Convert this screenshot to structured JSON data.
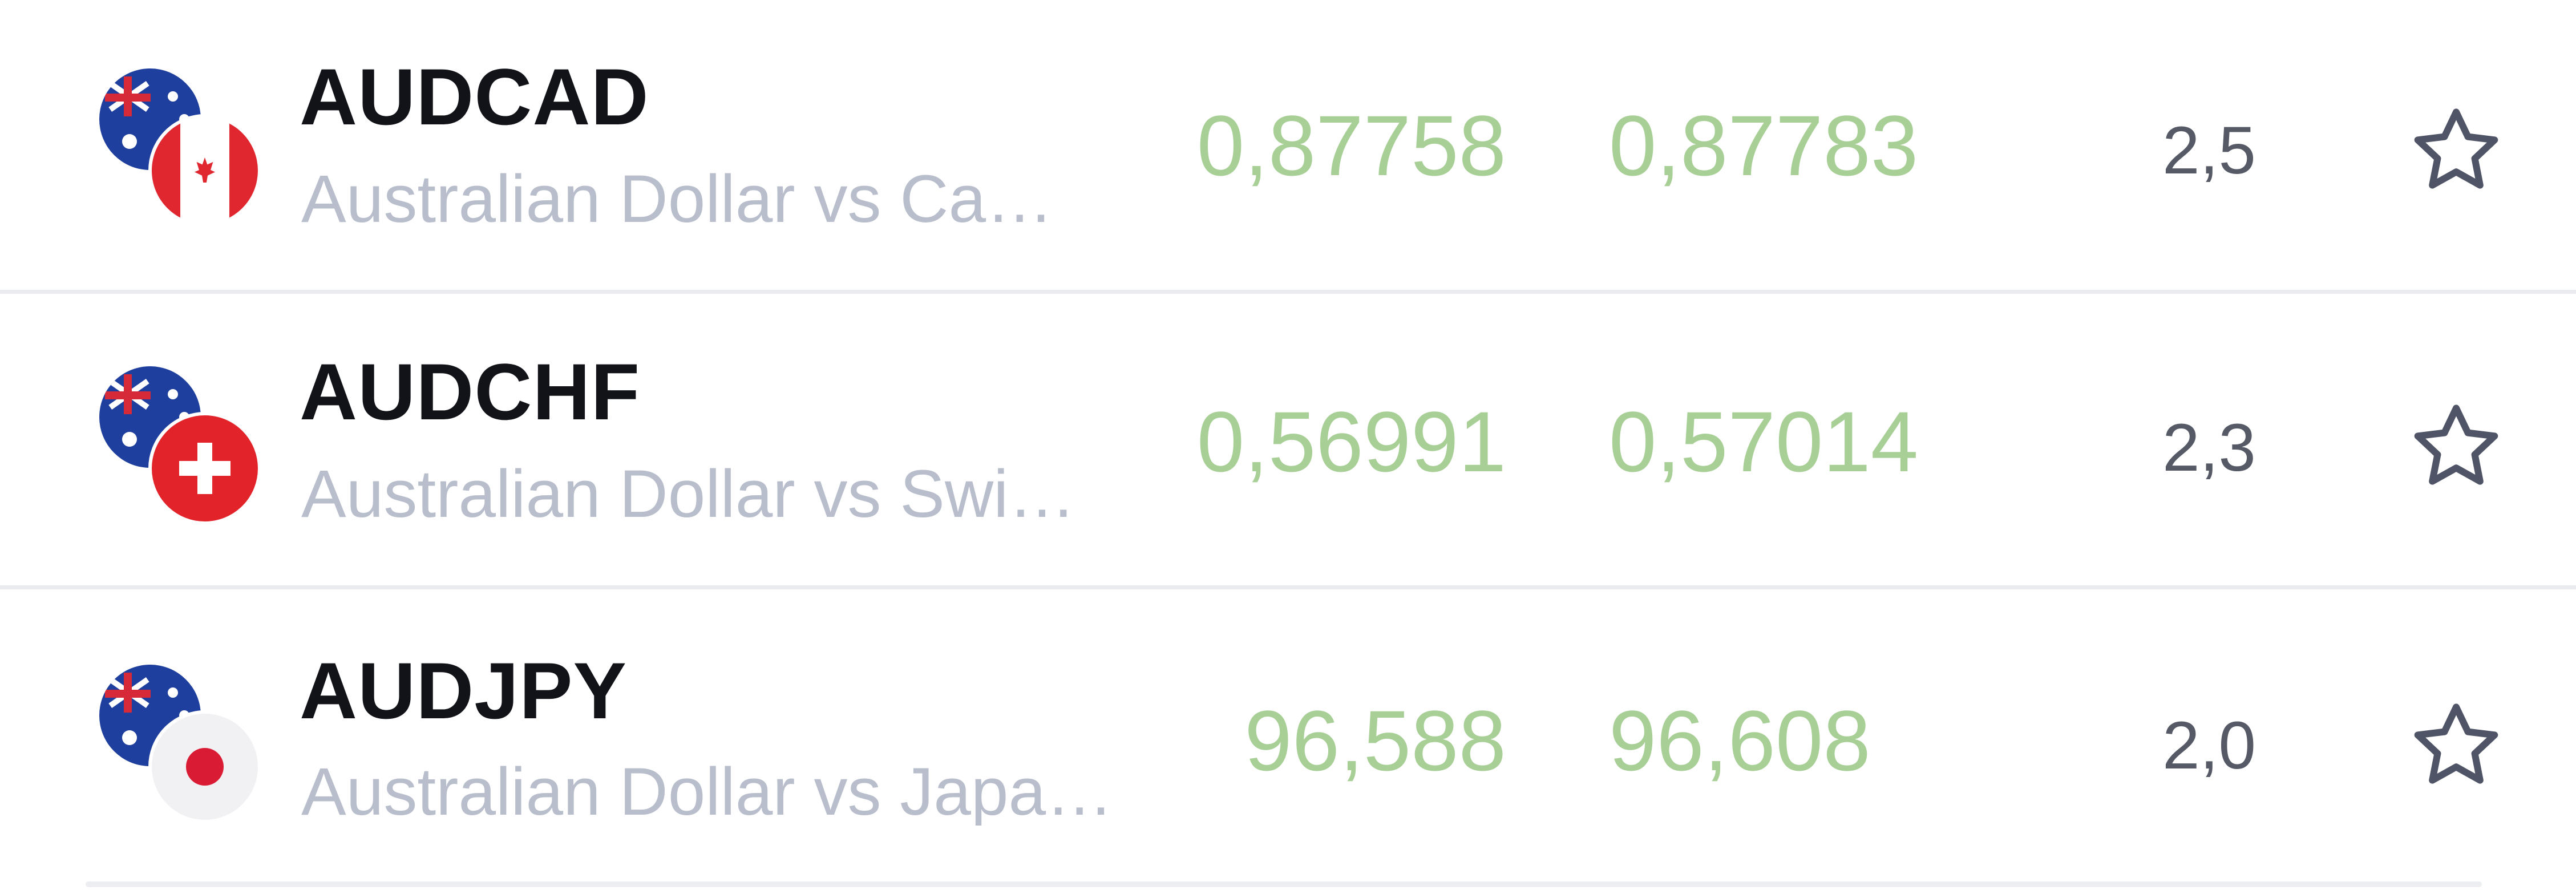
{
  "instruments": [
    {
      "symbol": "AUDCAD",
      "description": "Australian Dollar vs Ca…",
      "bid": "0,87758",
      "ask": "0,87783",
      "spread": "2,5",
      "base_flag": "australia-flag-icon",
      "quote_flag": "canada-flag-icon",
      "favorite_icon": "star-outline-icon"
    },
    {
      "symbol": "AUDCHF",
      "description": "Australian Dollar vs Swi…",
      "bid": "0,56991",
      "ask": "0,57014",
      "spread": "2,3",
      "base_flag": "australia-flag-icon",
      "quote_flag": "switzerland-flag-icon",
      "favorite_icon": "star-outline-icon"
    },
    {
      "symbol": "AUDJPY",
      "description": "Australian Dollar vs Japa…",
      "bid": "96,588",
      "ask": "96,608",
      "spread": "2,0",
      "base_flag": "australia-flag-icon",
      "quote_flag": "japan-flag-icon",
      "favorite_icon": "star-outline-icon"
    }
  ],
  "colors": {
    "price": "#a7cf96",
    "symbol": "#111318",
    "description": "#b8becb",
    "spread": "#555a66",
    "divider": "#e9ebef",
    "star": "#4f5566"
  }
}
